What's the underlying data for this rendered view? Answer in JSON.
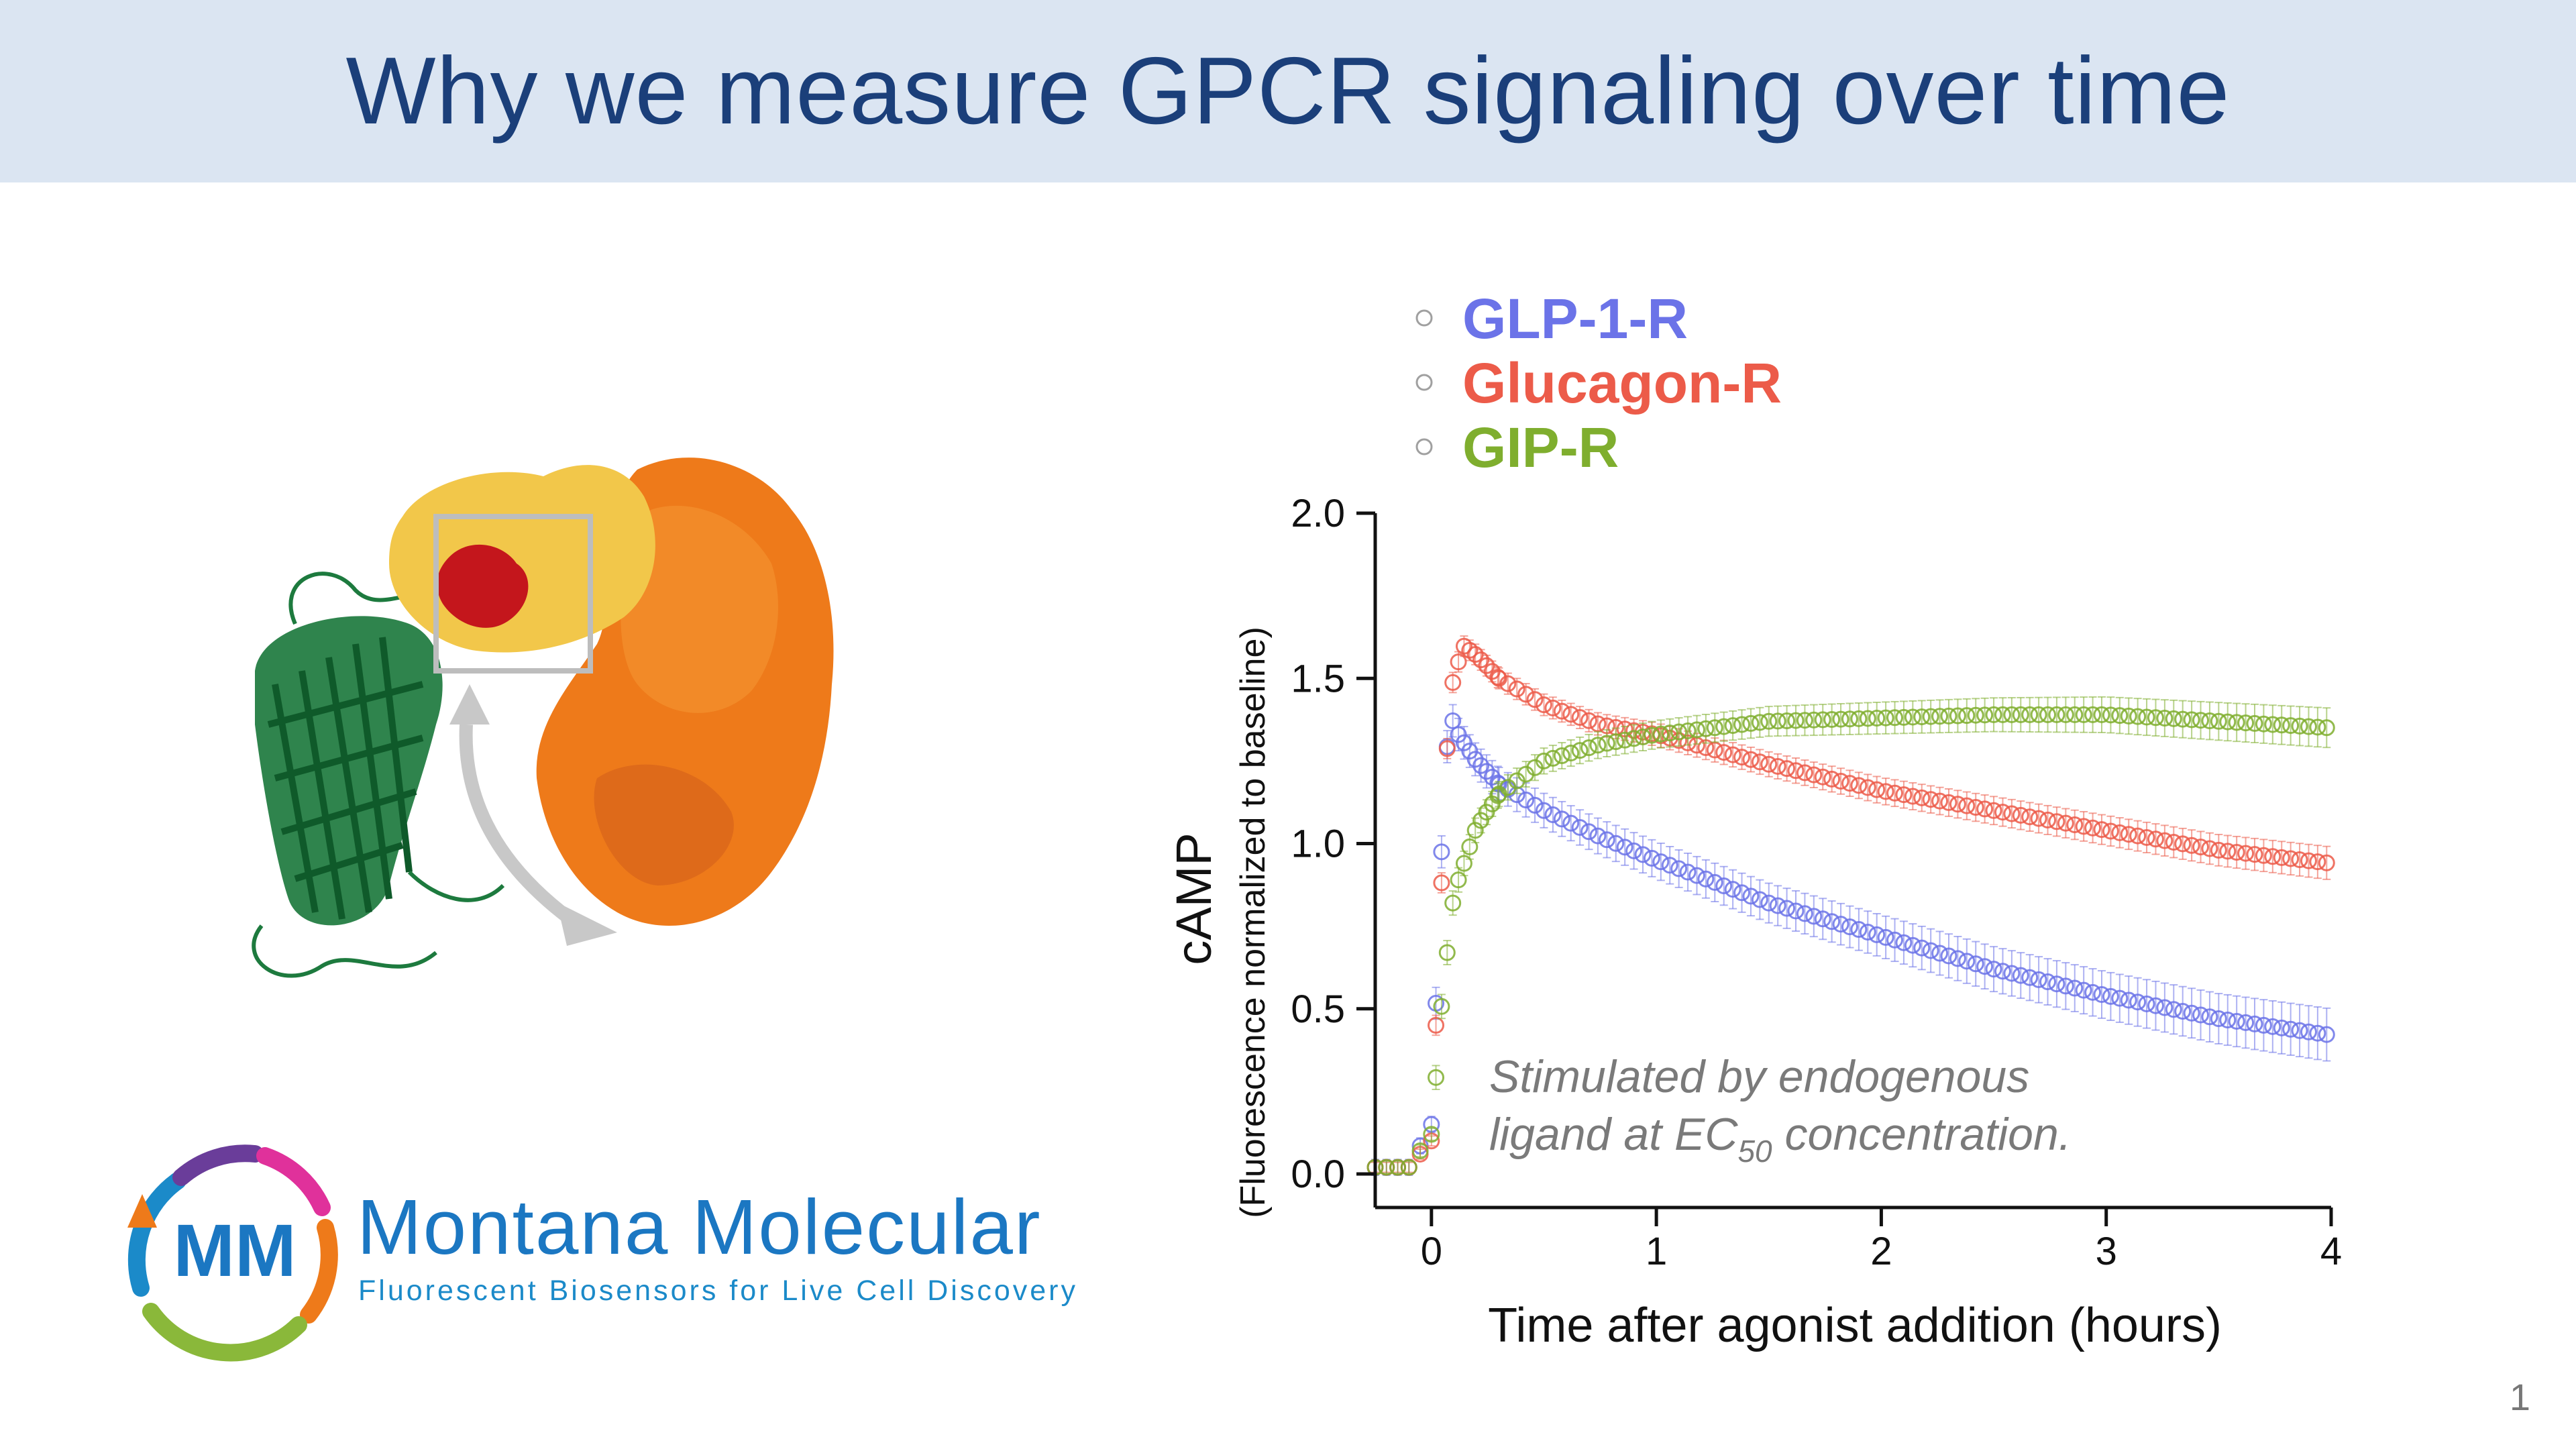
{
  "slide": {
    "title": "Why we measure GPCR signaling over time",
    "page_number": "1"
  },
  "logo": {
    "monogram": "MM",
    "name": "Montana Molecular",
    "tagline": "Fluorescent Biosensors for Live Cell Discovery"
  },
  "annotation": {
    "line1": "Stimulated by endogenous",
    "line2_prefix": "ligand at EC",
    "line2_sub": "50",
    "line2_suffix": " concentration."
  },
  "colors": {
    "title_bg": "#dbe5f2",
    "title_text": "#1b3f7a",
    "glp1r": "#6b73e8",
    "glucagon": "#ec5b49",
    "gip": "#7fae2e",
    "gfp": "#1d7a3e",
    "orange": "#ee7a1a",
    "yellow": "#f2c74a",
    "red": "#c4161c"
  },
  "chart_data": {
    "type": "scatter",
    "xlabel": "Time after agonist addition (hours)",
    "ylabel": "cAMP",
    "ylabel_sub": "(Fluorescence normalized to baseline)",
    "xlim": [
      -0.25,
      4.0
    ],
    "ylim": [
      0.0,
      2.0
    ],
    "xticks": [
      "0",
      "1",
      "2",
      "3",
      "4"
    ],
    "yticks": [
      "0.0",
      "0.5",
      "1.0",
      "1.5",
      "2.0"
    ],
    "legend_position": "top-left",
    "series": [
      {
        "name": "GLP-1-R",
        "color": "#6b73e8",
        "points": [
          [
            -0.25,
            0.02
          ],
          [
            -0.1,
            0.02
          ],
          [
            0,
            0.15
          ],
          [
            0.03,
            0.7
          ],
          [
            0.06,
            1.25
          ],
          [
            0.09,
            1.38
          ],
          [
            0.12,
            1.33
          ],
          [
            0.2,
            1.25
          ],
          [
            0.3,
            1.18
          ],
          [
            0.5,
            1.1
          ],
          [
            0.75,
            1.02
          ],
          [
            1.0,
            0.95
          ],
          [
            1.5,
            0.82
          ],
          [
            2.0,
            0.72
          ],
          [
            2.5,
            0.62
          ],
          [
            3.0,
            0.54
          ],
          [
            3.5,
            0.47
          ],
          [
            4.0,
            0.42
          ]
        ],
        "error": 0.08
      },
      {
        "name": "Glucagon-R",
        "color": "#ec5b49",
        "points": [
          [
            -0.25,
            0.02
          ],
          [
            -0.1,
            0.02
          ],
          [
            0,
            0.1
          ],
          [
            0.04,
            0.8
          ],
          [
            0.08,
            1.45
          ],
          [
            0.14,
            1.6
          ],
          [
            0.2,
            1.57
          ],
          [
            0.3,
            1.5
          ],
          [
            0.5,
            1.42
          ],
          [
            0.75,
            1.36
          ],
          [
            1.0,
            1.33
          ],
          [
            1.5,
            1.24
          ],
          [
            2.0,
            1.16
          ],
          [
            2.5,
            1.1
          ],
          [
            3.0,
            1.04
          ],
          [
            3.5,
            0.98
          ],
          [
            4.0,
            0.94
          ]
        ],
        "error": 0.05
      },
      {
        "name": "GIP-R",
        "color": "#7fae2e",
        "points": [
          [
            -0.25,
            0.02
          ],
          [
            -0.1,
            0.02
          ],
          [
            0,
            0.12
          ],
          [
            0.05,
            0.55
          ],
          [
            0.1,
            0.85
          ],
          [
            0.2,
            1.05
          ],
          [
            0.3,
            1.15
          ],
          [
            0.5,
            1.25
          ],
          [
            0.75,
            1.3
          ],
          [
            1.0,
            1.33
          ],
          [
            1.5,
            1.37
          ],
          [
            2.0,
            1.38
          ],
          [
            2.5,
            1.39
          ],
          [
            3.0,
            1.39
          ],
          [
            3.5,
            1.37
          ],
          [
            4.0,
            1.35
          ]
        ],
        "error": 0.06
      }
    ]
  }
}
